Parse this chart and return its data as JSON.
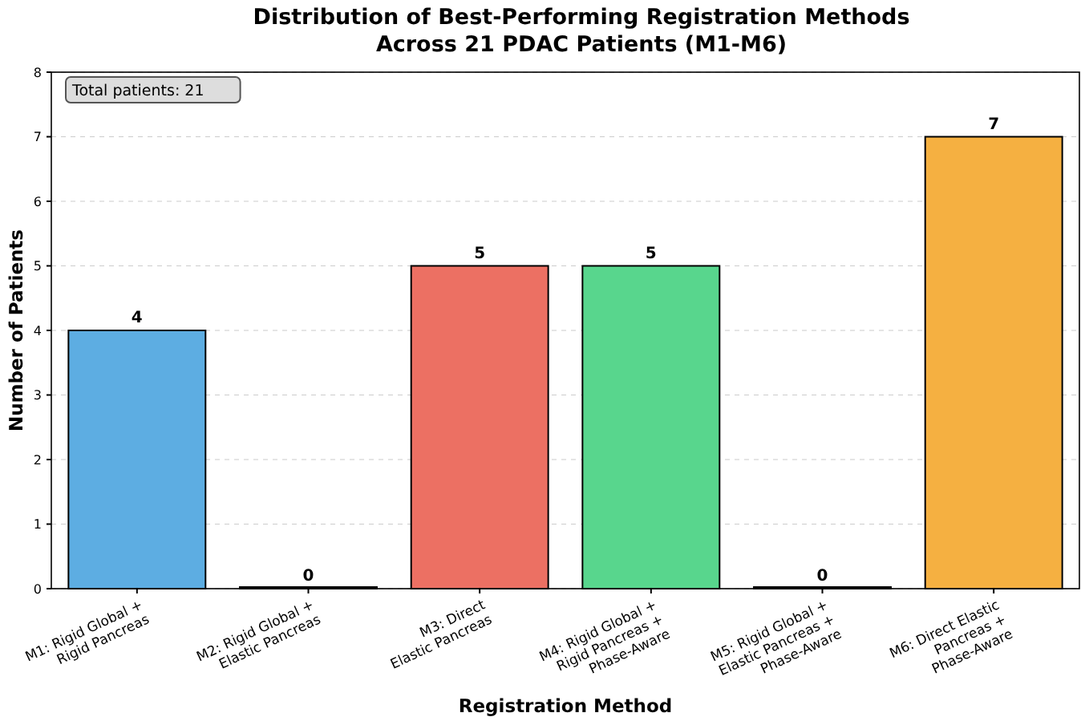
{
  "chart_data": {
    "type": "bar",
    "title": "Distribution of Best-Performing Registration Methods\nAcross 21 PDAC Patients (M1-M6)",
    "xlabel": "Registration Method",
    "ylabel": "Number of Patients",
    "categories": [
      "M1: Rigid Global +\nRigid Pancreas",
      "M2: Rigid Global +\nElastic Pancreas",
      "M3: Direct\nElastic Pancreas",
      "M4: Rigid Global +\nRigid Pancreas +\nPhase-Aware",
      "M5: Rigid Global +\nElastic Pancreas +\nPhase-Aware",
      "M6: Direct Elastic\nPancreas +\nPhase-Aware"
    ],
    "values": [
      4,
      0,
      5,
      5,
      0,
      7
    ],
    "colors": [
      "#5dade2",
      "#af7ac5",
      "#ec7063",
      "#58d68d",
      "#af7ac5",
      "#f5b041"
    ],
    "ylim": [
      0,
      8
    ],
    "yticks": [
      0,
      1,
      2,
      3,
      4,
      5,
      6,
      7,
      8
    ],
    "grid": "y",
    "data_labels": true,
    "annotations": [
      "Total patients: 21"
    ]
  }
}
